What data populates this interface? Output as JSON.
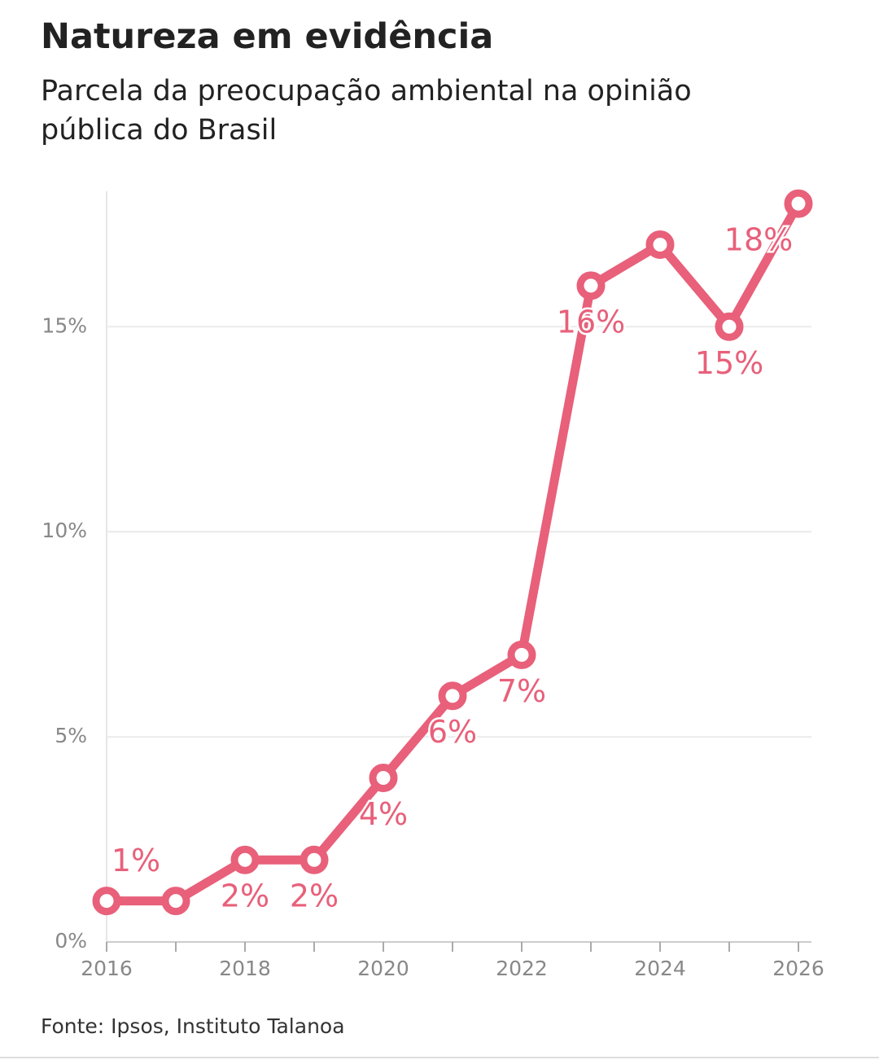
{
  "chart_data": {
    "type": "line",
    "title": "Natureza em evidência",
    "subtitle": "Parcela da preocupação ambiental na opinião pública do Brasil",
    "source": "Fonte: Ipsos, Instituto Talanoa",
    "x": [
      2016,
      2017,
      2018,
      2019,
      2020,
      2021,
      2022,
      2023,
      2024,
      2025,
      2026
    ],
    "series": [
      {
        "name": "Preocupação ambiental",
        "color": "#e8607a",
        "values": [
          1,
          1,
          2,
          2,
          4,
          6,
          7,
          16,
          17,
          15,
          18
        ],
        "value_labels": [
          "1%",
          null,
          "2%",
          "2%",
          "4%",
          "6%",
          "7%",
          "16%",
          null,
          "15%",
          "18%"
        ]
      }
    ],
    "xlim": [
      2016,
      2026
    ],
    "xticks": [
      2016,
      2018,
      2020,
      2022,
      2024,
      2026
    ],
    "xminorticks": [
      2017,
      2019,
      2021,
      2023,
      2025
    ],
    "ylim": [
      0,
      18.3
    ],
    "yticks": [
      {
        "value": 0,
        "label": "0%"
      },
      {
        "value": 5,
        "label": "5%"
      },
      {
        "value": 10,
        "label": "10%"
      },
      {
        "value": 15,
        "label": "15%"
      }
    ],
    "grid": true
  }
}
